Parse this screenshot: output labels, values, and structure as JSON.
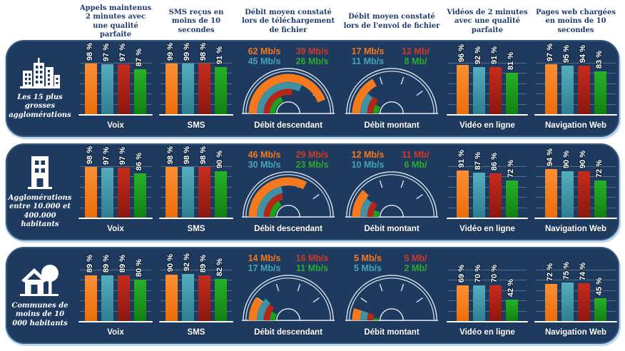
{
  "column_headers": [
    "Appels maintenus 2 minutes avec une qualité parfaite",
    "SMS reçus en moins de 10 secondes",
    "Débit moyen constaté lors de téléchargement de fichier",
    "Débit moyen constaté lors de l'envoi  de fichier",
    "Vidéos de 2 minutes avec une qualité parfaite",
    "Pages web chargées en moins de 10 secondes"
  ],
  "palette": {
    "orange": "#f5791d",
    "teal": "#3d92a6",
    "red": "#b52617",
    "green": "#1da11d"
  },
  "text_colors": {
    "orange": "#f5791d",
    "red": "#cf3a28",
    "teal": "#45a4b8",
    "green": "#2bab2b"
  },
  "background_colors": {
    "panel": "#1e3a5f",
    "panel_border": "#36597f",
    "panel_glow": "#bcd6ec",
    "header_text": "#1f3c6e"
  },
  "bar_color_order": [
    "orange",
    "teal",
    "red",
    "green"
  ],
  "gauge_tick_angles": [
    36,
    72,
    108,
    144
  ],
  "chart_data": {
    "type": "multi",
    "value_axis_percent": [
      0,
      100
    ],
    "rows": [
      {
        "label": "Les 15 plus grosses agglomérations",
        "icon": "city-icon",
        "charts": [
          {
            "type": "bar",
            "caption": "Voix",
            "values": [
              98,
              97,
              97,
              87
            ],
            "value_labels": [
              "98 %",
              "97 %",
              "97 %",
              "87 %"
            ]
          },
          {
            "type": "bar",
            "caption": "SMS",
            "values": [
              99,
              99,
              98,
              91
            ],
            "value_labels": [
              "99 %",
              "99 %",
              "98 %",
              "91 %"
            ]
          },
          {
            "type": "gauge",
            "caption": "Débit descendant",
            "max": 70,
            "unit": "Mb/s",
            "arcs": [
              {
                "color": "orange",
                "value": 62
              },
              {
                "color": "teal",
                "value": 45
              },
              {
                "color": "red",
                "value": 39
              },
              {
                "color": "green",
                "value": 26
              }
            ],
            "value_labels": [
              {
                "text": "62 Mb/s",
                "color": "orange"
              },
              {
                "text": "39 Mb/s",
                "color": "red"
              },
              {
                "text": "45 Mb/s",
                "color": "teal"
              },
              {
                "text": "26 Mb/s",
                "color": "green"
              }
            ]
          },
          {
            "type": "gauge",
            "caption": "Débit montant",
            "max": 50,
            "unit": "Mb/s",
            "arcs": [
              {
                "color": "orange",
                "value": 17
              },
              {
                "color": "teal",
                "value": 11
              },
              {
                "color": "red",
                "value": 12
              },
              {
                "color": "green",
                "value": 8
              }
            ],
            "value_labels": [
              {
                "text": "17 Mb/s",
                "color": "orange"
              },
              {
                "text": "12 Mb/",
                "color": "red"
              },
              {
                "text": "11 Mb/s",
                "color": "teal"
              },
              {
                "text": "8 Mb/",
                "color": "green"
              }
            ]
          },
          {
            "type": "bar",
            "caption": "Vidéo en ligne",
            "values": [
              96,
              92,
              91,
              81
            ],
            "value_labels": [
              "96 %",
              "92 %",
              "91 %",
              "81 %"
            ]
          },
          {
            "type": "bar",
            "caption": "Navigation Web",
            "values": [
              97,
              95,
              94,
              83
            ],
            "value_labels": [
              "97 %",
              "95 %",
              "94 %",
              "83 %"
            ]
          }
        ]
      },
      {
        "label": "Agglomérations entre 10.000 et 400.000 habitants",
        "icon": "building-icon",
        "charts": [
          {
            "type": "bar",
            "caption": "Voix",
            "values": [
              98,
              97,
              97,
              86
            ],
            "value_labels": [
              "98 %",
              "97 %",
              "97 %",
              "86 %"
            ]
          },
          {
            "type": "bar",
            "caption": "SMS",
            "values": [
              98,
              98,
              98,
              90
            ],
            "value_labels": [
              "98 %",
              "98 %",
              "98 %",
              "90 %"
            ]
          },
          {
            "type": "gauge",
            "caption": "Débit descendant",
            "max": 70,
            "unit": "Mb/s",
            "arcs": [
              {
                "color": "orange",
                "value": 46
              },
              {
                "color": "teal",
                "value": 30
              },
              {
                "color": "red",
                "value": 29
              },
              {
                "color": "green",
                "value": 23
              }
            ],
            "value_labels": [
              {
                "text": "46 Mb/s",
                "color": "orange"
              },
              {
                "text": "29 Mb/s",
                "color": "red"
              },
              {
                "text": "30 Mb/s",
                "color": "teal"
              },
              {
                "text": "23 Mb/s",
                "color": "green"
              }
            ]
          },
          {
            "type": "gauge",
            "caption": "Débit montant",
            "max": 50,
            "unit": "Mb/s",
            "arcs": [
              {
                "color": "orange",
                "value": 12
              },
              {
                "color": "teal",
                "value": 10
              },
              {
                "color": "red",
                "value": 11
              },
              {
                "color": "green",
                "value": 6
              }
            ],
            "value_labels": [
              {
                "text": "12 Mb/s",
                "color": "orange"
              },
              {
                "text": "11 Mb/",
                "color": "red"
              },
              {
                "text": "10 Mb/s",
                "color": "teal"
              },
              {
                "text": "6 Mb/",
                "color": "green"
              }
            ]
          },
          {
            "type": "bar",
            "caption": "Vidéo en ligne",
            "values": [
              91,
              87,
              86,
              72
            ],
            "value_labels": [
              "91 %",
              "87 %",
              "86 %",
              "72 %"
            ]
          },
          {
            "type": "bar",
            "caption": "Navigation Web",
            "values": [
              94,
              90,
              90,
              72
            ],
            "value_labels": [
              "94 %",
              "90 %",
              "90 %",
              "72 %"
            ]
          }
        ]
      },
      {
        "label": "Communes de moins de 10 000 habitants",
        "icon": "house-icon",
        "charts": [
          {
            "type": "bar",
            "caption": "Voix",
            "values": [
              89,
              89,
              89,
              80
            ],
            "value_labels": [
              "89 %",
              "89 %",
              "89 %",
              "80 %"
            ]
          },
          {
            "type": "bar",
            "caption": "SMS",
            "values": [
              90,
              92,
              89,
              82
            ],
            "value_labels": [
              "90 %",
              "92 %",
              "89 %",
              "82 %"
            ]
          },
          {
            "type": "gauge",
            "caption": "Débit descendant",
            "max": 70,
            "unit": "Mb/s",
            "arcs": [
              {
                "color": "orange",
                "value": 14
              },
              {
                "color": "teal",
                "value": 17
              },
              {
                "color": "red",
                "value": 16
              },
              {
                "color": "green",
                "value": 11
              }
            ],
            "value_labels": [
              {
                "text": "14 Mb/s",
                "color": "orange"
              },
              {
                "text": "16 Mb/s",
                "color": "red"
              },
              {
                "text": "17 Mb/s",
                "color": "teal"
              },
              {
                "text": "11 Mb/s",
                "color": "green"
              }
            ]
          },
          {
            "type": "gauge",
            "caption": "Débit montant",
            "max": 50,
            "unit": "Mb/s",
            "arcs": [
              {
                "color": "orange",
                "value": 5
              },
              {
                "color": "teal",
                "value": 5
              },
              {
                "color": "red",
                "value": 5
              },
              {
                "color": "green",
                "value": 2
              }
            ],
            "value_labels": [
              {
                "text": "5 Mb/s",
                "color": "orange"
              },
              {
                "text": "5 Mb/",
                "color": "red"
              },
              {
                "text": "5 Mb/s",
                "color": "teal"
              },
              {
                "text": "2 Mb/",
                "color": "green"
              }
            ]
          },
          {
            "type": "bar",
            "caption": "Vidéo en ligne",
            "values": [
              69,
              70,
              70,
              42
            ],
            "value_labels": [
              "69 %",
              "70 %",
              "70 %",
              "42 %"
            ]
          },
          {
            "type": "bar",
            "caption": "Navigation Web",
            "values": [
              72,
              75,
              74,
              45
            ],
            "value_labels": [
              "72 %",
              "75 %",
              "74 %",
              "45 %"
            ]
          }
        ]
      }
    ]
  }
}
